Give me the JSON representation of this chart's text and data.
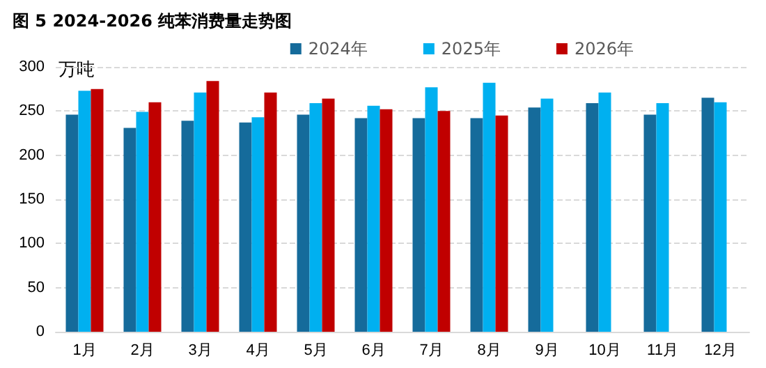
{
  "chart_data": {
    "type": "bar",
    "title": "图 5 2024-2026 纯苯消费量走势图",
    "ylabel": "万吨",
    "categories": [
      "1月",
      "2月",
      "3月",
      "4月",
      "5月",
      "6月",
      "7月",
      "8月",
      "9月",
      "10月",
      "11月",
      "12月"
    ],
    "series": [
      {
        "name": "2024年",
        "color": "#156b9b",
        "values": [
          246,
          231,
          239,
          237,
          246,
          242,
          242,
          242,
          254,
          259,
          246,
          265
        ]
      },
      {
        "name": "2025年",
        "color": "#00b0f0",
        "values": [
          273,
          249,
          271,
          243,
          259,
          256,
          277,
          282,
          264,
          271,
          259,
          260
        ]
      },
      {
        "name": "2026年",
        "color": "#c00000",
        "values": [
          275,
          260,
          284,
          271,
          264,
          252,
          250,
          245,
          null,
          null,
          null,
          null
        ]
      }
    ],
    "ylim": [
      0,
      300
    ],
    "yticks": [
      0,
      50,
      100,
      150,
      200,
      250,
      300
    ],
    "grid": "y",
    "legend": "top right"
  }
}
